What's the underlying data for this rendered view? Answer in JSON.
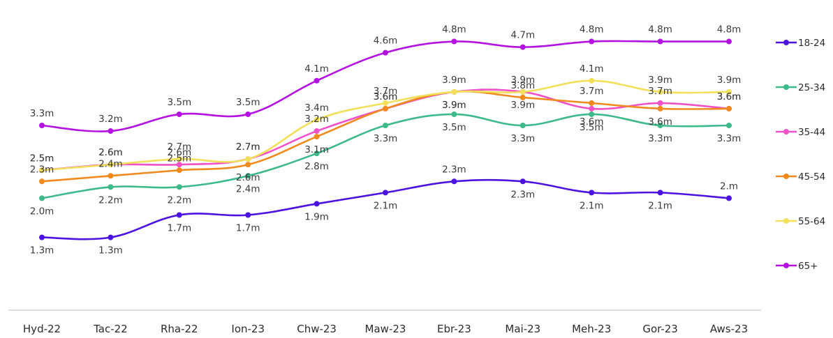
{
  "chart_data": {
    "type": "line",
    "title": "",
    "xlabel": "",
    "ylabel": "",
    "categories": [
      "Hyd-22",
      "Tac-22",
      "Rha-22",
      "Ion-23",
      "Chw-23",
      "Maw-23",
      "Ebr-23",
      "Mai-23",
      "Meh-23",
      "Gor-23",
      "Aws-23"
    ],
    "ylim": [
      0,
      5.5
    ],
    "grid": false,
    "legend_position": "right",
    "series": [
      {
        "name": "18-24",
        "color": "#4B12E0",
        "values": [
          1.3,
          1.3,
          1.7,
          1.7,
          1.9,
          2.1,
          2.3,
          2.3,
          2.1,
          2.1,
          2.0
        ],
        "labels": [
          "1.3m",
          "1.3m",
          "1.7m",
          "1.7m",
          "1.9m",
          "2.1m",
          "2.3m",
          "2.3m",
          "2.1m",
          "2.1m",
          "2.m"
        ],
        "label_pos": [
          "below",
          "below",
          "below",
          "below",
          "below",
          "below",
          "above",
          "below",
          "below",
          "below",
          "above"
        ]
      },
      {
        "name": "25-34",
        "color": "#3DB98A",
        "values": [
          2.0,
          2.2,
          2.2,
          2.4,
          2.8,
          3.3,
          3.5,
          3.3,
          3.5,
          3.3,
          3.3
        ],
        "labels": [
          "2.0m",
          "2.2m",
          "2.2m",
          "2.4m",
          "2.8m",
          "3.3m",
          "3.5m",
          "3.3m",
          "3.5m",
          "3.3m",
          "3.3m"
        ],
        "label_pos": [
          "below",
          "below",
          "below",
          "below",
          "below",
          "below",
          "below",
          "below",
          "below",
          "below",
          "below"
        ]
      },
      {
        "name": "35-44",
        "color": "#F050C8",
        "values": [
          2.5,
          2.6,
          2.6,
          2.7,
          3.2,
          3.6,
          3.9,
          3.9,
          3.6,
          3.7,
          3.6
        ],
        "labels": [
          "2.5m",
          "2.6m",
          "2.6m",
          "2.7m",
          "3.2m",
          "3.6m",
          "3.9m",
          "3.9m",
          "3.6m",
          "3.7m",
          "3.6m"
        ],
        "label_pos": [
          "above",
          "above",
          "above",
          "above",
          "above",
          "above",
          "below",
          "below",
          "below",
          "above",
          "above"
        ]
      },
      {
        "name": "45-54",
        "color": "#F08A1E",
        "values": [
          2.3,
          2.4,
          2.5,
          2.6,
          3.1,
          3.6,
          3.9,
          3.8,
          3.7,
          3.6,
          3.6
        ],
        "labels": [
          "2.3m",
          "2.4m",
          "2.5m",
          "2.6m",
          "3.1m",
          "3.6m",
          "3.9m",
          "3.8m",
          "3.7m",
          "3.6m",
          "3.6m"
        ],
        "label_pos": [
          "above",
          "above",
          "above",
          "below",
          "below",
          "above",
          "below",
          "above",
          "above",
          "below",
          "above"
        ]
      },
      {
        "name": "55-64",
        "color": "#F2E05A",
        "values": [
          2.5,
          2.6,
          2.7,
          2.7,
          3.4,
          3.7,
          3.9,
          3.9,
          4.1,
          3.9,
          3.9
        ],
        "labels": [
          "2.5m",
          "2.6m",
          "2.7m",
          "2.7m",
          "3.4m",
          "3.7m",
          "3.9m",
          "3.9m",
          "4.1m",
          "3.9m",
          "3.9m"
        ],
        "label_pos": [
          "above",
          "above",
          "above",
          "above",
          "above",
          "above",
          "above",
          "above",
          "above",
          "above",
          "above"
        ]
      },
      {
        "name": "65+",
        "color": "#B412E0",
        "values": [
          3.3,
          3.2,
          3.5,
          3.5,
          4.1,
          4.6,
          4.8,
          4.7,
          4.8,
          4.8,
          4.8
        ],
        "labels": [
          "3.3m",
          "3.2m",
          "3.5m",
          "3.5m",
          "4.1m",
          "4.6m",
          "4.8m",
          "4.7m",
          "4.8m",
          "4.8m",
          "4.8m"
        ],
        "label_pos": [
          "above",
          "above",
          "above",
          "above",
          "above",
          "above",
          "above",
          "above",
          "above",
          "above",
          "above"
        ]
      }
    ]
  }
}
